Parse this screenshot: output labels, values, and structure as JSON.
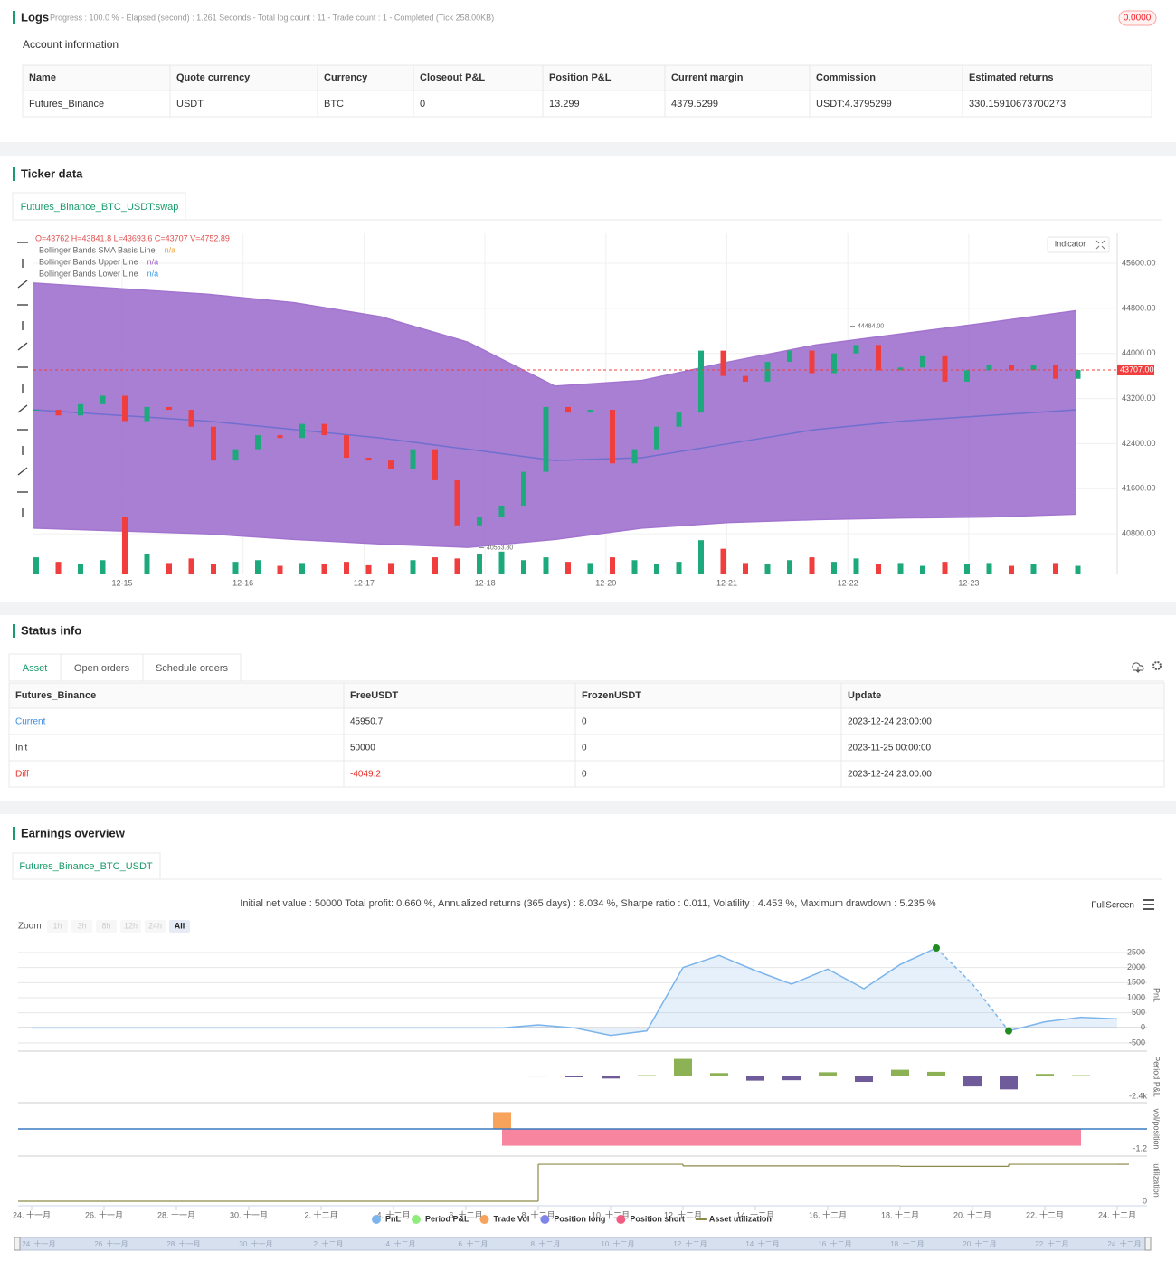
{
  "logs": {
    "title": "Logs",
    "summary": "Progress : 100.0 % - Elapsed (second) : 1.261 Seconds - Total log count : 11 - Trade count : 1 - Completed (Tick 258.00KB)",
    "badge": "0.0000"
  },
  "account": {
    "title": "Account information",
    "columns": [
      "Name",
      "Quote currency",
      "Currency",
      "Closeout P&L",
      "Position P&L",
      "Current margin",
      "Commission",
      "Estimated returns"
    ],
    "rows": [
      [
        "Futures_Binance",
        "USDT",
        "BTC",
        "0",
        "13.299",
        "4379.5299",
        "USDT:4.3795299",
        "330.15910673700273"
      ]
    ]
  },
  "ticker": {
    "title": "Ticker data",
    "tab": "Futures_Binance_BTC_USDT:swap",
    "button": "Indicator"
  },
  "status": {
    "title": "Status info",
    "tabs": [
      "Asset",
      "Open orders",
      "Schedule orders"
    ],
    "columns": [
      "Futures_Binance",
      "FreeUSDT",
      "FrozenUSDT",
      "Update"
    ],
    "rows": [
      [
        "Current",
        "45950.7",
        "0",
        "2023-12-24 23:00:00"
      ],
      [
        "Init",
        "50000",
        "0",
        "2023-11-25 00:00:00"
      ],
      [
        "Diff",
        "-4049.2",
        "0",
        "2023-12-24 23:00:00"
      ]
    ]
  },
  "earnings": {
    "title": "Earnings overview",
    "tab": "Futures_Binance_BTC_USDT",
    "summary": "Initial net value : 50000 Total profit: 0.660 %, Annualized returns (365 days) : 8.034 %, Sharpe ratio : 0.011, Volatility : 4.453 %, Maximum drawdown : 5.235 %",
    "fullscreen": "FullScreen",
    "zoom": "Zoom",
    "zoom_buttons": [
      "1h",
      "3h",
      "8h",
      "12h",
      "24h",
      "All"
    ],
    "legend": [
      {
        "name": "PnL",
        "color": "#7cb5ec"
      },
      {
        "name": "Period P&L",
        "color": "#90ed7d"
      },
      {
        "name": "Trade Vol",
        "color": "#f7a35c"
      },
      {
        "name": "Position long",
        "color": "#8085e9"
      },
      {
        "name": "Position short",
        "color": "#f15c80"
      },
      {
        "name": "Asset utilization",
        "color": "#8d8a48"
      }
    ]
  },
  "chart_data": [
    {
      "type": "candlestick",
      "info": "O=43762 H=43841.8 L=43693.6 C=43707 V=4752.89",
      "indicators": [
        {
          "name": "Bollinger Bands SMA Basis Line",
          "value": "n/a",
          "color": "#f0a030"
        },
        {
          "name": "Bollinger Bands Upper Line",
          "value": "n/a",
          "color": "#9a5cc8"
        },
        {
          "name": "Bollinger Bands Lower Line",
          "value": "n/a",
          "color": "#3d9be9"
        }
      ],
      "categories": [
        "12-15",
        "12-16",
        "12-17",
        "12-18",
        "12-20",
        "12-21",
        "12-22",
        "12-23"
      ],
      "closes": [
        43000,
        42900,
        43100,
        43250,
        42800,
        43050,
        43000,
        42700,
        42100,
        42300,
        42550,
        42500,
        42750,
        42550,
        42150,
        42100,
        41950,
        42300,
        41750,
        40950,
        41100,
        41300,
        41900,
        43050,
        42950,
        43000,
        42050,
        42300,
        42700,
        42950,
        44050,
        43600,
        43500,
        43850,
        44050,
        43650,
        44000,
        44150,
        43700,
        43750,
        43950,
        43500,
        43700,
        43800,
        43700,
        43800,
        43550,
        43707
      ],
      "volumes": [
        30,
        22,
        18,
        25,
        100,
        35,
        20,
        28,
        18,
        22,
        25,
        15,
        20,
        18,
        22,
        16,
        20,
        25,
        30,
        28,
        35,
        40,
        25,
        30,
        22,
        20,
        30,
        25,
        18,
        22,
        60,
        45,
        20,
        18,
        25,
        30,
        22,
        28,
        18,
        20,
        15,
        22,
        18,
        20,
        15,
        18,
        20,
        15
      ],
      "volume_lim": [
        0,
        100
      ],
      "band_upper": [
        45250,
        45150,
        45050,
        44900,
        44650,
        44200,
        43420,
        43520,
        43850,
        44150,
        44350,
        44550,
        44760
      ],
      "band_basis": [
        43000,
        42900,
        42800,
        42650,
        42500,
        42300,
        42100,
        42150,
        42400,
        42650,
        42800,
        42900,
        43000
      ],
      "band_lower": [
        40900,
        40850,
        40800,
        40700,
        40620,
        40560,
        40700,
        40900,
        41000,
        41050,
        41080,
        41100,
        41150
      ],
      "ylim": [
        40080,
        46130
      ],
      "yticks": [
        {
          "value": 45600,
          "label": "45600.00"
        },
        {
          "value": 44800,
          "label": "44800.00"
        },
        {
          "value": 44000,
          "label": "44000.00"
        },
        {
          "value": 43200,
          "label": "43200.00"
        },
        {
          "value": 42400,
          "label": "42400.00"
        },
        {
          "value": 41600,
          "label": "41600.00"
        },
        {
          "value": 40800,
          "label": "40800.00"
        }
      ],
      "last": {
        "value": 43707,
        "label": "43707.00"
      },
      "high": {
        "value": 44484,
        "label": "44484.00"
      },
      "low": {
        "value": 40553.8,
        "label": "40553.80"
      },
      "up_color": "#1ea97c",
      "down_color": "#f03e3e",
      "band_color": "#a274cf",
      "basis_color": "#6f6fd0",
      "grid": true
    },
    {
      "type": "line",
      "ylabel": "PnL",
      "color": "#7cb5ec",
      "values": [
        0,
        0,
        0,
        0,
        0,
        0,
        0,
        0,
        0,
        0,
        0,
        0,
        0,
        0,
        100,
        0,
        -250,
        -100,
        2000,
        2400,
        1900,
        1450,
        1950,
        1300,
        2100,
        2650,
        1450,
        -100,
        200,
        350,
        300
      ],
      "ylim": [
        -710,
        2800
      ],
      "yticks": [
        2500,
        2000,
        1500,
        1000,
        500,
        0,
        -500
      ],
      "xticks": [
        {
          "value": 0,
          "label": "24. 十一月"
        },
        {
          "value": 2,
          "label": "26. 十一月"
        },
        {
          "value": 4,
          "label": "28. 十一月"
        },
        {
          "value": 6,
          "label": "30. 十一月"
        },
        {
          "value": 8,
          "label": "2. 十二月"
        },
        {
          "value": 10,
          "label": "4. 十二月"
        },
        {
          "value": 12,
          "label": "6. 十二月"
        },
        {
          "value": 14,
          "label": "8. 十二月"
        },
        {
          "value": 16,
          "label": "10. 十二月"
        },
        {
          "value": 18,
          "label": "12. 十二月"
        },
        {
          "value": 20,
          "label": "14. 十二月"
        },
        {
          "value": 22,
          "label": "16. 十二月"
        },
        {
          "value": 24,
          "label": "18. 十二月"
        },
        {
          "value": 26,
          "label": "20. 十二月"
        },
        {
          "value": 28,
          "label": "22. 十二月"
        },
        {
          "value": 30,
          "label": "24. 十二月"
        }
      ],
      "grid": true
    },
    {
      "type": "bar",
      "ylabel": "Period P&L",
      "pos_color": "#8db255",
      "neg_color": "#6f5b99",
      "values": [
        null,
        null,
        null,
        null,
        null,
        null,
        null,
        null,
        null,
        null,
        null,
        null,
        null,
        null,
        100,
        -100,
        -250,
        150,
        2100,
        400,
        -500,
        -450,
        500,
        -650,
        800,
        550,
        -1200,
        -1550,
        300,
        150,
        null
      ],
      "ylim": [
        -2700,
        2700
      ],
      "yticks": [
        {
          "value": -2400,
          "label": "-2.4k"
        }
      ]
    },
    {
      "type": "bar",
      "ylabel": "vol/position",
      "zero_color": "#3a7bbf",
      "series": [
        {
          "name": "Trade Vol",
          "color": "#f7a35c",
          "values": [
            null,
            null,
            null,
            null,
            null,
            null,
            null,
            null,
            null,
            null,
            null,
            null,
            null,
            1,
            null,
            null,
            null,
            null,
            null,
            null,
            null,
            null,
            null,
            null,
            null,
            null,
            null,
            null,
            null,
            null,
            null
          ]
        },
        {
          "name": "Position short",
          "color": "#f7859f",
          "values": [
            null,
            null,
            null,
            null,
            null,
            null,
            null,
            null,
            null,
            null,
            null,
            null,
            null,
            -1,
            -1,
            -1,
            -1,
            -1,
            -1,
            -1,
            -1,
            -1,
            -1,
            -1,
            -1,
            -1,
            -1,
            -1,
            -1,
            null,
            null
          ]
        }
      ],
      "ylim": [
        -1.4,
        1.4
      ],
      "yticks": [
        -1.2
      ]
    },
    {
      "type": "step",
      "ylabel": "utilization",
      "color": "#8d8a48",
      "values": [
        0,
        0,
        0,
        0,
        0,
        0,
        0,
        0,
        0,
        0,
        0,
        0,
        0,
        0,
        0.89,
        0.89,
        0.89,
        0.89,
        0.85,
        0.85,
        0.85,
        0.85,
        0.85,
        0.85,
        0.84,
        0.84,
        0.84,
        0.89,
        0.89,
        0.89,
        0.89
      ],
      "ylim": [
        0,
        1
      ],
      "yticks": [
        0
      ]
    }
  ]
}
